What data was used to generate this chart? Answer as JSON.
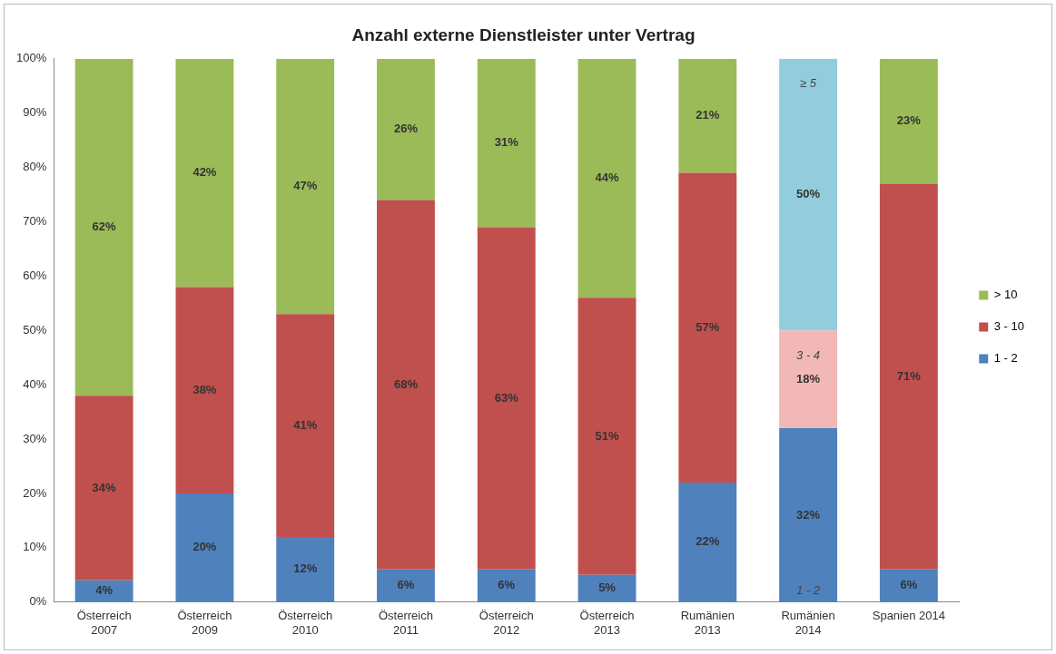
{
  "chart_data": {
    "type": "bar",
    "stacked": true,
    "title": "Anzahl externe Dienstleister unter Vertrag",
    "categories": [
      "Österreich 2007",
      "Österreich 2009",
      "Österreich 2010",
      "Österreich 2011",
      "Österreich 2012",
      "Österreich 2013",
      "Rumänien 2013",
      "Rumänien 2014",
      "Spanien 2014"
    ],
    "series": [
      {
        "name": "1 - 2",
        "color": "#4f81bd",
        "values": [
          4,
          20,
          12,
          6,
          6,
          5,
          22,
          32,
          6
        ],
        "value_labels": [
          "4%",
          "20%",
          "12%",
          "6%",
          "6%",
          "5%",
          "22%",
          "32%",
          "6%"
        ]
      },
      {
        "name": "3 - 10",
        "color": "#c0504d",
        "colors": [
          "#c0504d",
          "#c0504d",
          "#c0504d",
          "#c0504d",
          "#c0504d",
          "#c0504d",
          "#c0504d",
          "#f2b8b8",
          "#c0504d"
        ],
        "values": [
          34,
          38,
          41,
          68,
          63,
          51,
          57,
          18,
          71
        ],
        "value_labels": [
          "34%",
          "38%",
          "41%",
          "68%",
          "63%",
          "51%",
          "57%",
          "18%",
          "71%"
        ]
      },
      {
        "name": "> 10",
        "color": "#9bbb59",
        "colors": [
          "#9bbb59",
          "#9bbb59",
          "#9bbb59",
          "#9bbb59",
          "#9bbb59",
          "#9bbb59",
          "#9bbb59",
          "#93cddd",
          "#9bbb59"
        ],
        "values": [
          62,
          42,
          47,
          26,
          31,
          44,
          21,
          50,
          23
        ],
        "value_labels": [
          "62%",
          "42%",
          "47%",
          "26%",
          "31%",
          "44%",
          "21%",
          "50%",
          "23%"
        ]
      }
    ],
    "ylim": [
      0,
      100
    ],
    "yticks": [
      {
        "value": 0,
        "label": "0%"
      },
      {
        "value": 10,
        "label": "10%"
      },
      {
        "value": 20,
        "label": "20%"
      },
      {
        "value": 30,
        "label": "30%"
      },
      {
        "value": 40,
        "label": "40%"
      },
      {
        "value": 50,
        "label": "50%"
      },
      {
        "value": 60,
        "label": "60%"
      },
      {
        "value": 70,
        "label": "70%"
      },
      {
        "value": 80,
        "label": "80%"
      },
      {
        "value": 90,
        "label": "90%"
      },
      {
        "value": 100,
        "label": "100%"
      }
    ],
    "annotations": [
      "1 - 2",
      "3 - 4",
      "≥ 5"
    ],
    "grid": false,
    "legend": "right"
  }
}
